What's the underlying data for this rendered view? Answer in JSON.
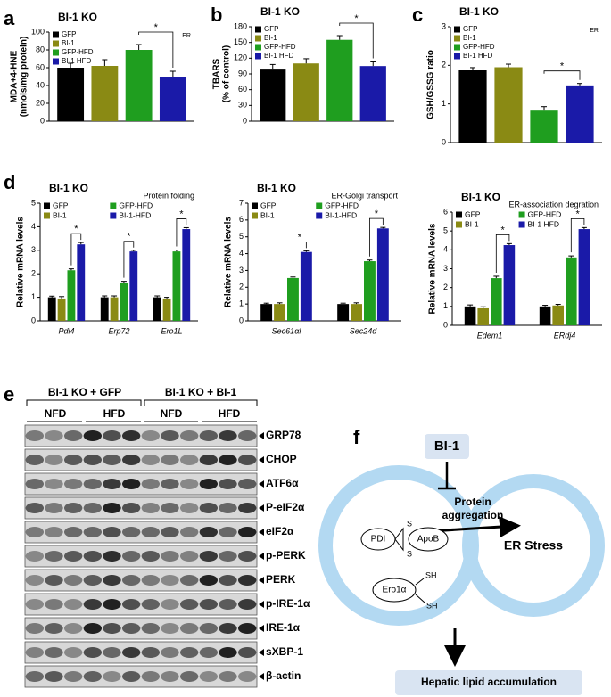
{
  "panel_labels": [
    "a",
    "b",
    "c",
    "d",
    "e",
    "f"
  ],
  "chart_data": [
    {
      "type": "bar",
      "title": "BI-1 KO",
      "note": "ER",
      "ylabel": [
        "MDA+4-HNE",
        "(nmols/mg protein)"
      ],
      "categories": [
        "GFP",
        "BI-1",
        "GFP-HFD",
        "BI-1 HFD"
      ],
      "values": [
        60,
        62,
        80,
        50
      ],
      "errors": [
        5,
        7,
        6,
        6
      ],
      "colors": [
        "#000000",
        "#8a8a14",
        "#1f9e1f",
        "#1a1aa8"
      ],
      "ylim": [
        0,
        100
      ],
      "yticks": [
        0,
        20,
        40,
        60,
        80,
        100
      ],
      "significance": "*"
    },
    {
      "type": "bar",
      "title": "BI-1 KO",
      "ylabel": [
        "TBARS",
        "(% of control)"
      ],
      "categories": [
        "GFP",
        "BI-1",
        "GFP-HFD",
        "BI-1 HFD"
      ],
      "values": [
        100,
        110,
        155,
        105
      ],
      "errors": [
        8,
        9,
        8,
        8
      ],
      "colors": [
        "#000000",
        "#8a8a14",
        "#1f9e1f",
        "#1a1aa8"
      ],
      "ylim": [
        0,
        180
      ],
      "yticks": [
        0,
        30,
        60,
        90,
        120,
        150,
        180
      ],
      "significance": "*"
    },
    {
      "type": "bar",
      "title": "BI-1 KO",
      "note": "ER",
      "ylabel": [
        "GSH/GSSG ratio"
      ],
      "categories": [
        "GFP",
        "BI-1",
        "GFP-HFD",
        "BI-1 HFD"
      ],
      "values": [
        1.88,
        1.95,
        0.85,
        1.48
      ],
      "errors": [
        0.06,
        0.08,
        0.08,
        0.05
      ],
      "colors": [
        "#000000",
        "#8a8a14",
        "#1f9e1f",
        "#1a1aa8"
      ],
      "ylim": [
        0,
        3
      ],
      "yticks": [
        0,
        1,
        2,
        3
      ],
      "significance": "*"
    },
    {
      "type": "grouped_bar",
      "title": "BI-1 KO",
      "note": "Protein folding",
      "ylabel": [
        "Relative mRNA levels"
      ],
      "categories": [
        "Pdi4",
        "Erp72",
        "Ero1L"
      ],
      "series": [
        {
          "name": "GFP",
          "color": "#000000",
          "values": [
            1.0,
            1.0,
            1.0
          ],
          "errors": [
            0.05,
            0.06,
            0.06
          ]
        },
        {
          "name": "BI-1",
          "color": "#8a8a14",
          "values": [
            0.95,
            1.0,
            0.95
          ],
          "errors": [
            0.08,
            0.06,
            0.05
          ]
        },
        {
          "name": "GFP-HFD",
          "color": "#1f9e1f",
          "values": [
            2.15,
            1.6,
            2.95
          ],
          "errors": [
            0.06,
            0.08,
            0.06
          ]
        },
        {
          "name": "BI-1-HFD",
          "color": "#1a1aa8",
          "values": [
            3.25,
            2.95,
            3.9
          ],
          "errors": [
            0.08,
            0.05,
            0.06
          ]
        }
      ],
      "ylim": [
        0,
        5
      ],
      "yticks": [
        0,
        1,
        2,
        3,
        4,
        5
      ],
      "significance": [
        "*",
        "*",
        "*"
      ]
    },
    {
      "type": "grouped_bar",
      "title": "BI-1 KO",
      "note": "ER-Golgi transport",
      "ylabel": [
        "Relative mRNA levels"
      ],
      "categories": [
        "Sec61αl",
        "Sec24d"
      ],
      "series": [
        {
          "name": "GFP",
          "color": "#000000",
          "values": [
            1.0,
            1.0
          ],
          "errors": [
            0.05,
            0.05
          ]
        },
        {
          "name": "BI-1",
          "color": "#8a8a14",
          "values": [
            1.0,
            1.0
          ],
          "errors": [
            0.07,
            0.07
          ]
        },
        {
          "name": "GFP-HFD",
          "color": "#1f9e1f",
          "values": [
            2.55,
            3.55
          ],
          "errors": [
            0.06,
            0.07
          ]
        },
        {
          "name": "BI-1-HFD",
          "color": "#1a1aa8",
          "values": [
            4.1,
            5.5
          ],
          "errors": [
            0.07,
            0.06
          ]
        }
      ],
      "ylim": [
        0,
        7
      ],
      "yticks": [
        0,
        1,
        2,
        3,
        4,
        5,
        6,
        7
      ],
      "significance": [
        "*",
        "*"
      ]
    },
    {
      "type": "grouped_bar",
      "title": "BI-1 KO",
      "note": "ER-association degration",
      "ylabel": [
        "Relative mRNA levels"
      ],
      "categories": [
        "Edem1",
        "ERdj4"
      ],
      "series": [
        {
          "name": "GFP",
          "color": "#000000",
          "values": [
            1.0,
            1.0
          ],
          "errors": [
            0.08,
            0.06
          ]
        },
        {
          "name": "BI-1",
          "color": "#8a8a14",
          "values": [
            0.9,
            1.05
          ],
          "errors": [
            0.08,
            0.06
          ]
        },
        {
          "name": "GFP-HFD",
          "color": "#1f9e1f",
          "values": [
            2.5,
            3.6
          ],
          "errors": [
            0.1,
            0.08
          ]
        },
        {
          "name": "BI-1 HFD",
          "color": "#1a1aa8",
          "values": [
            4.25,
            5.1
          ],
          "errors": [
            0.08,
            0.08
          ]
        }
      ],
      "ylim": [
        0,
        6
      ],
      "yticks": [
        0,
        1,
        2,
        3,
        4,
        5,
        6
      ],
      "significance": [
        "*",
        "*"
      ]
    }
  ],
  "blot": {
    "groups": [
      "BI-1 KO  + GFP",
      "BI-1 KO + BI-1"
    ],
    "conditions": [
      "NFD",
      "HFD",
      "NFD",
      "HFD"
    ],
    "proteins": [
      "GRP78",
      "CHOP",
      "ATF6α",
      "P-eIF2α",
      "eIF2α",
      "p-PERK",
      "PERK",
      "p-IRE-1α",
      "IRE-1α",
      "sXBP-1",
      "β-actin"
    ]
  },
  "diagram": {
    "inhibitor": "BI-1",
    "aggregation": [
      "Protein",
      "aggregation"
    ],
    "pdi": "PDI",
    "apob": "ApoB",
    "disulfide": [
      "S",
      "S"
    ],
    "ero1": "Ero1α",
    "thiols": [
      "SH",
      "SH"
    ],
    "stress": "ER Stress",
    "outcome": "Hepatic lipid accumulation"
  }
}
